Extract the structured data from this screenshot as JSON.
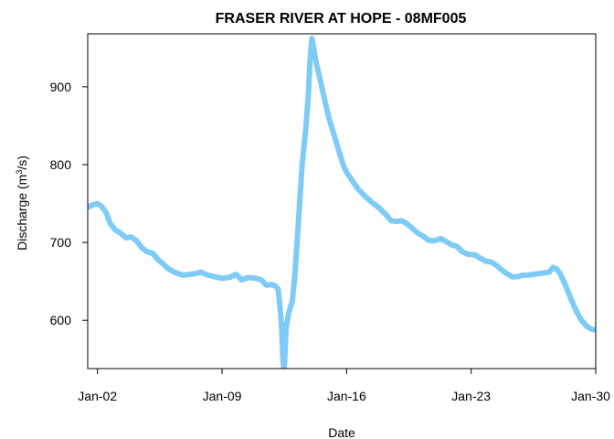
{
  "chart_data": {
    "type": "line",
    "title": "FRASER RIVER AT HOPE - 08MF005",
    "xlabel": "Date",
    "ylabel": "Discharge (m",
    "ylabel_superscript": "3",
    "ylabel_suffix": "/s)",
    "x_ticks": [
      {
        "label": "Jan-02",
        "day": 2
      },
      {
        "label": "Jan-09",
        "day": 9
      },
      {
        "label": "Jan-16",
        "day": 16
      },
      {
        "label": "Jan-23",
        "day": 23
      },
      {
        "label": "Jan-30",
        "day": 30
      }
    ],
    "y_ticks": [
      600,
      700,
      800,
      900
    ],
    "xlim": [
      1.45,
      30.0
    ],
    "ylim": [
      538,
      968
    ],
    "grid": false,
    "line_color": "#7ecbf7",
    "series": [
      {
        "points": [
          [
            1.45,
            745
          ],
          [
            1.7,
            748
          ],
          [
            2.0,
            750
          ],
          [
            2.2,
            747
          ],
          [
            2.5,
            738
          ],
          [
            2.7,
            725
          ],
          [
            3.0,
            716
          ],
          [
            3.3,
            712
          ],
          [
            3.6,
            706
          ],
          [
            3.9,
            707
          ],
          [
            4.2,
            702
          ],
          [
            4.5,
            693
          ],
          [
            4.8,
            688
          ],
          [
            5.1,
            686
          ],
          [
            5.4,
            678
          ],
          [
            5.7,
            672
          ],
          [
            6.0,
            666
          ],
          [
            6.4,
            661
          ],
          [
            6.8,
            658
          ],
          [
            7.2,
            659
          ],
          [
            7.5,
            660
          ],
          [
            7.8,
            662
          ],
          [
            8.2,
            658
          ],
          [
            8.6,
            656
          ],
          [
            9.0,
            654
          ],
          [
            9.4,
            655
          ],
          [
            9.8,
            659
          ],
          [
            10.1,
            652
          ],
          [
            10.5,
            655
          ],
          [
            10.9,
            654
          ],
          [
            11.2,
            652
          ],
          [
            11.5,
            645
          ],
          [
            11.8,
            646
          ],
          [
            12.0,
            644
          ],
          [
            12.15,
            640
          ],
          [
            12.25,
            620
          ],
          [
            12.35,
            590
          ],
          [
            12.42,
            550
          ],
          [
            12.48,
            538
          ],
          [
            12.52,
            548
          ],
          [
            12.6,
            590
          ],
          [
            12.75,
            610
          ],
          [
            12.95,
            625
          ],
          [
            13.1,
            660
          ],
          [
            13.3,
            730
          ],
          [
            13.5,
            800
          ],
          [
            13.7,
            845
          ],
          [
            13.85,
            890
          ],
          [
            13.95,
            935
          ],
          [
            14.05,
            962
          ],
          [
            14.15,
            950
          ],
          [
            14.3,
            930
          ],
          [
            14.45,
            915
          ],
          [
            14.6,
            900
          ],
          [
            14.8,
            880
          ],
          [
            15.0,
            860
          ],
          [
            15.2,
            845
          ],
          [
            15.4,
            830
          ],
          [
            15.6,
            815
          ],
          [
            15.8,
            800
          ],
          [
            16.0,
            790
          ],
          [
            16.3,
            780
          ],
          [
            16.6,
            770
          ],
          [
            17.0,
            760
          ],
          [
            17.4,
            752
          ],
          [
            17.8,
            745
          ],
          [
            18.2,
            736
          ],
          [
            18.5,
            728
          ],
          [
            18.8,
            727
          ],
          [
            19.1,
            728
          ],
          [
            19.4,
            724
          ],
          [
            19.7,
            718
          ],
          [
            20.0,
            712
          ],
          [
            20.3,
            708
          ],
          [
            20.6,
            703
          ],
          [
            20.9,
            702
          ],
          [
            21.3,
            705
          ],
          [
            21.6,
            701
          ],
          [
            21.9,
            697
          ],
          [
            22.2,
            695
          ],
          [
            22.5,
            688
          ],
          [
            22.8,
            685
          ],
          [
            23.2,
            684
          ],
          [
            23.5,
            680
          ],
          [
            23.8,
            676
          ],
          [
            24.1,
            675
          ],
          [
            24.4,
            671
          ],
          [
            24.7,
            665
          ],
          [
            25.0,
            660
          ],
          [
            25.3,
            656
          ],
          [
            25.6,
            656
          ],
          [
            25.9,
            658
          ],
          [
            26.2,
            658
          ],
          [
            26.5,
            659
          ],
          [
            26.8,
            660
          ],
          [
            27.1,
            661
          ],
          [
            27.4,
            662
          ],
          [
            27.6,
            668
          ],
          [
            27.8,
            666
          ],
          [
            28.0,
            660
          ],
          [
            28.3,
            645
          ],
          [
            28.6,
            628
          ],
          [
            28.9,
            612
          ],
          [
            29.2,
            600
          ],
          [
            29.5,
            592
          ],
          [
            29.8,
            588
          ],
          [
            30.0,
            588
          ]
        ]
      }
    ]
  }
}
